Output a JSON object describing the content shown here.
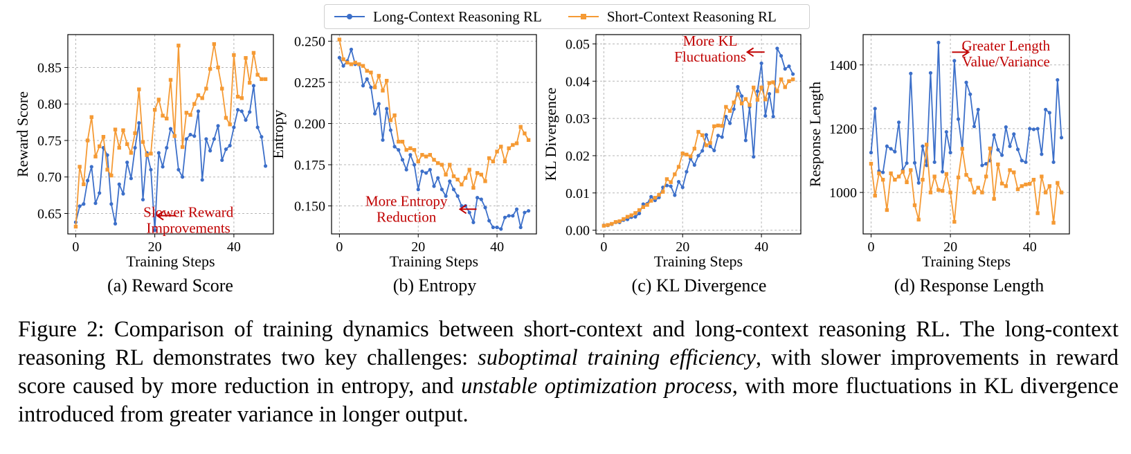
{
  "legend": {
    "long_label": "Long-Context Reasoning RL",
    "short_label": "Short-Context Reasoning RL"
  },
  "colors": {
    "long": "#3c6fc9",
    "short": "#f59a34",
    "annotation": "#c00000"
  },
  "chart_data": [
    {
      "type": "line",
      "caption": "(a) Reward Score",
      "xlabel": "Training Steps",
      "ylabel": "Reward Score",
      "xlim": [
        -2,
        50
      ],
      "ylim": [
        0.622,
        0.895
      ],
      "xticks": [
        0,
        20,
        40
      ],
      "yticks": [
        0.65,
        0.7,
        0.75,
        0.8,
        0.85
      ],
      "grid": true,
      "annotation": {
        "lines": [
          "Slower Reward",
          "Improvements"
        ],
        "x": 28.5,
        "y": 0.645,
        "arrow_from": [
          25.4,
          0.647
        ],
        "arrow_to": [
          20.6,
          0.647
        ]
      },
      "series": [
        {
          "name": "Long-Context Reasoning RL",
          "x": [
            0,
            1,
            2,
            3,
            4,
            5,
            6,
            7,
            8,
            9,
            10,
            11,
            12,
            13,
            14,
            15,
            16,
            17,
            18,
            19,
            20,
            21,
            22,
            23,
            24,
            25,
            26,
            27,
            28,
            29,
            30,
            31,
            32,
            33,
            34,
            35,
            36,
            37,
            38,
            39,
            40,
            41,
            42,
            43,
            44,
            45,
            46,
            47,
            48
          ],
          "values": [
            0.638,
            0.66,
            0.663,
            0.695,
            0.714,
            0.664,
            0.678,
            0.74,
            0.73,
            0.663,
            0.636,
            0.69,
            0.677,
            0.72,
            0.698,
            0.74,
            0.774,
            0.669,
            0.733,
            0.71,
            0.627,
            0.733,
            0.714,
            0.74,
            0.766,
            0.757,
            0.71,
            0.7,
            0.752,
            0.758,
            0.756,
            0.79,
            0.696,
            0.752,
            0.736,
            0.752,
            0.77,
            0.723,
            0.738,
            0.743,
            0.768,
            0.792,
            0.79,
            0.778,
            0.789,
            0.825,
            0.768,
            0.755,
            0.715
          ]
        },
        {
          "name": "Short-Context Reasoning RL",
          "x": [
            0,
            1,
            2,
            3,
            4,
            5,
            6,
            7,
            8,
            9,
            10,
            11,
            12,
            13,
            14,
            15,
            16,
            17,
            18,
            19,
            20,
            21,
            22,
            23,
            24,
            25,
            26,
            27,
            28,
            29,
            30,
            31,
            32,
            33,
            34,
            35,
            36,
            37,
            38,
            39,
            40,
            41,
            42,
            43,
            44,
            45,
            46,
            47,
            48
          ],
          "values": [
            0.632,
            0.714,
            0.69,
            0.75,
            0.782,
            0.728,
            0.742,
            0.755,
            0.71,
            0.702,
            0.765,
            0.74,
            0.764,
            0.745,
            0.733,
            0.76,
            0.82,
            0.748,
            0.73,
            0.732,
            0.792,
            0.806,
            0.784,
            0.78,
            0.833,
            0.756,
            0.88,
            0.741,
            0.788,
            0.785,
            0.8,
            0.812,
            0.808,
            0.821,
            0.848,
            0.882,
            0.85,
            0.821,
            0.781,
            0.772,
            0.867,
            0.81,
            0.808,
            0.863,
            0.829,
            0.87,
            0.84,
            0.834,
            0.834
          ]
        }
      ]
    },
    {
      "type": "line",
      "caption": "(b) Entropy",
      "xlabel": "Training Steps",
      "ylabel": "Entropy",
      "xlim": [
        -2,
        50
      ],
      "ylim": [
        0.133,
        0.254
      ],
      "xticks": [
        0,
        20,
        40
      ],
      "yticks": [
        0.15,
        0.175,
        0.2,
        0.225,
        0.25
      ],
      "grid": true,
      "annotation": {
        "lines": [
          "More Entropy",
          "Reduction"
        ],
        "x": 17.0,
        "y": 0.15,
        "arrow_from": [
          34.8,
          0.148
        ],
        "arrow_to": [
          30.6,
          0.148
        ]
      },
      "series": [
        {
          "name": "Long-Context Reasoning RL",
          "x": [
            0,
            1,
            2,
            3,
            4,
            5,
            6,
            7,
            8,
            9,
            10,
            11,
            12,
            13,
            14,
            15,
            16,
            17,
            18,
            19,
            20,
            21,
            22,
            23,
            24,
            25,
            26,
            27,
            28,
            29,
            30,
            31,
            32,
            33,
            34,
            35,
            36,
            37,
            38,
            39,
            40,
            41,
            42,
            43,
            44,
            45,
            46,
            47,
            48
          ],
          "values": [
            0.24,
            0.235,
            0.238,
            0.245,
            0.236,
            0.236,
            0.223,
            0.227,
            0.222,
            0.206,
            0.212,
            0.19,
            0.209,
            0.196,
            0.186,
            0.184,
            0.178,
            0.172,
            0.181,
            0.175,
            0.16,
            0.171,
            0.17,
            0.172,
            0.162,
            0.167,
            0.16,
            0.156,
            0.165,
            0.16,
            0.156,
            0.15,
            0.15,
            0.146,
            0.14,
            0.155,
            0.154,
            0.149,
            0.141,
            0.137,
            0.137,
            0.136,
            0.143,
            0.144,
            0.144,
            0.148,
            0.137,
            0.146,
            0.147
          ]
        },
        {
          "name": "Short-Context Reasoning RL",
          "x": [
            0,
            1,
            2,
            3,
            4,
            5,
            6,
            7,
            8,
            9,
            10,
            11,
            12,
            13,
            14,
            15,
            16,
            17,
            18,
            19,
            20,
            21,
            22,
            23,
            24,
            25,
            26,
            27,
            28,
            29,
            30,
            31,
            32,
            33,
            34,
            35,
            36,
            37,
            38,
            39,
            40,
            41,
            42,
            43,
            44,
            45,
            46,
            47,
            48
          ],
          "values": [
            0.251,
            0.239,
            0.237,
            0.236,
            0.237,
            0.236,
            0.235,
            0.232,
            0.231,
            0.222,
            0.229,
            0.22,
            0.226,
            0.202,
            0.205,
            0.189,
            0.189,
            0.184,
            0.185,
            0.184,
            0.177,
            0.181,
            0.18,
            0.181,
            0.178,
            0.176,
            0.175,
            0.169,
            0.175,
            0.168,
            0.166,
            0.163,
            0.167,
            0.172,
            0.161,
            0.17,
            0.169,
            0.165,
            0.179,
            0.177,
            0.183,
            0.186,
            0.177,
            0.185,
            0.187,
            0.188,
            0.198,
            0.194,
            0.19
          ]
        }
      ]
    },
    {
      "type": "line",
      "caption": "(c) KL Divergence",
      "xlabel": "Training Steps",
      "ylabel": "KL Divergence",
      "xlim": [
        -2,
        50
      ],
      "ylim": [
        -0.001,
        0.0525
      ],
      "xticks": [
        0,
        20,
        40
      ],
      "yticks": [
        0.0,
        0.01,
        0.02,
        0.03,
        0.04,
        0.05
      ],
      "grid": true,
      "annotation": {
        "lines": [
          "More KL",
          "Fluctuations"
        ],
        "x": 27.0,
        "y": 0.0495,
        "arrow_from": [
          40.8,
          0.0478
        ],
        "arrow_to": [
          36.4,
          0.0478
        ]
      },
      "series": [
        {
          "name": "Long-Context Reasoning RL",
          "x": [
            0,
            1,
            2,
            3,
            4,
            5,
            6,
            7,
            8,
            9,
            10,
            11,
            12,
            13,
            14,
            15,
            16,
            17,
            18,
            19,
            20,
            21,
            22,
            23,
            24,
            25,
            26,
            27,
            28,
            29,
            30,
            31,
            32,
            33,
            34,
            35,
            36,
            37,
            38,
            39,
            40,
            41,
            42,
            43,
            44,
            45,
            46,
            47,
            48
          ],
          "values": [
            0.0013,
            0.0013,
            0.0016,
            0.0021,
            0.0021,
            0.0027,
            0.0029,
            0.0035,
            0.0036,
            0.0045,
            0.007,
            0.0071,
            0.009,
            0.008,
            0.0088,
            0.0115,
            0.012,
            0.0118,
            0.0094,
            0.013,
            0.0115,
            0.0157,
            0.0192,
            0.0175,
            0.02,
            0.0213,
            0.0256,
            0.0225,
            0.0214,
            0.0254,
            0.025,
            0.0305,
            0.0287,
            0.0325,
            0.0385,
            0.036,
            0.0241,
            0.0331,
            0.0197,
            0.0373,
            0.0448,
            0.0307,
            0.0366,
            0.0305,
            0.0488,
            0.0468,
            0.0433,
            0.044,
            0.0419
          ]
        },
        {
          "name": "Short-Context Reasoning RL",
          "x": [
            0,
            1,
            2,
            3,
            4,
            5,
            6,
            7,
            8,
            9,
            10,
            11,
            12,
            13,
            14,
            15,
            16,
            17,
            18,
            19,
            20,
            21,
            22,
            23,
            24,
            25,
            26,
            27,
            28,
            29,
            30,
            31,
            32,
            33,
            34,
            35,
            36,
            37,
            38,
            39,
            40,
            41,
            42,
            43,
            44,
            45,
            46,
            47,
            48
          ],
          "values": [
            0.0012,
            0.0014,
            0.0017,
            0.0022,
            0.0024,
            0.003,
            0.0036,
            0.004,
            0.0046,
            0.0054,
            0.0062,
            0.0068,
            0.0079,
            0.0087,
            0.0095,
            0.0103,
            0.0137,
            0.0129,
            0.015,
            0.017,
            0.0206,
            0.0203,
            0.0198,
            0.0219,
            0.0264,
            0.0255,
            0.0228,
            0.0234,
            0.0279,
            0.0281,
            0.028,
            0.0331,
            0.032,
            0.0343,
            0.0365,
            0.034,
            0.0352,
            0.0336,
            0.0383,
            0.035,
            0.0383,
            0.0351,
            0.0395,
            0.0397,
            0.0373,
            0.0405,
            0.0384,
            0.04,
            0.0405
          ]
        }
      ]
    },
    {
      "type": "line",
      "caption": "(d) Response Length",
      "xlabel": "Training Steps",
      "ylabel": "Response Length",
      "xlim": [
        -2,
        50
      ],
      "ylim": [
        870,
        1495
      ],
      "xticks": [
        0,
        20,
        40
      ],
      "yticks": [
        1000,
        1200,
        1400
      ],
      "grid": true,
      "annotation": {
        "lines": [
          "Greater Length",
          "Value/Variance"
        ],
        "x": 34.0,
        "y": 1445,
        "arrow_from": [
          20.4,
          1440
        ],
        "arrow_to": [
          24.6,
          1440
        ]
      },
      "series": [
        {
          "name": "Long-Context Reasoning RL",
          "x": [
            0,
            1,
            2,
            3,
            4,
            5,
            6,
            7,
            8,
            9,
            10,
            11,
            12,
            13,
            14,
            15,
            16,
            17,
            18,
            19,
            20,
            21,
            22,
            23,
            24,
            25,
            26,
            27,
            28,
            29,
            30,
            31,
            32,
            33,
            34,
            35,
            36,
            37,
            38,
            39,
            40,
            41,
            42,
            43,
            44,
            45,
            46,
            47,
            48
          ],
          "values": [
            1125,
            1263,
            1067,
            1063,
            1145,
            1137,
            1128,
            1220,
            1070,
            1092,
            1373,
            1093,
            1030,
            1145,
            1085,
            1375,
            1095,
            1470,
            1065,
            1190,
            1125,
            1413,
            1230,
            1138,
            1345,
            1308,
            1207,
            1260,
            1085,
            1090,
            1100,
            1180,
            1134,
            1117,
            1205,
            1145,
            1183,
            1135,
            1100,
            1095,
            1200,
            1198,
            1200,
            1120,
            1260,
            1250,
            1095,
            1353,
            1172
          ]
        },
        {
          "name": "Short-Context Reasoning RL",
          "x": [
            0,
            1,
            2,
            3,
            4,
            5,
            6,
            7,
            8,
            9,
            10,
            11,
            12,
            13,
            14,
            15,
            16,
            17,
            18,
            19,
            20,
            21,
            22,
            23,
            24,
            25,
            26,
            27,
            28,
            29,
            30,
            31,
            32,
            33,
            34,
            35,
            36,
            37,
            38,
            39,
            40,
            41,
            42,
            43,
            44,
            45,
            46,
            47,
            48
          ],
          "values": [
            1090,
            990,
            1060,
            1040,
            945,
            1060,
            1040,
            1050,
            1065,
            1032,
            1070,
            960,
            915,
            1040,
            1150,
            1000,
            1050,
            1008,
            1005,
            1058,
            1000,
            908,
            1047,
            1137,
            1055,
            1040,
            1000,
            1015,
            1000,
            1050,
            1138,
            980,
            1088,
            1028,
            1020,
            1070,
            1063,
            1010,
            1020,
            1025,
            1027,
            1040,
            935,
            1050,
            1000,
            1020,
            905,
            1030,
            1000
          ]
        }
      ]
    }
  ],
  "caption": {
    "p1": "Figure 2: Comparison of training dynamics between short-context and long-context reasoning RL. The long-context reasoning RL demonstrates two key challenges: ",
    "em1": "suboptimal training efficiency",
    "p2": ", with slower improvements in reward score caused by more reduction in entropy, and ",
    "em2": "unstable optimization process",
    "p3": ", with more fluctuations in KL divergence introduced from greater variance in longer output."
  }
}
